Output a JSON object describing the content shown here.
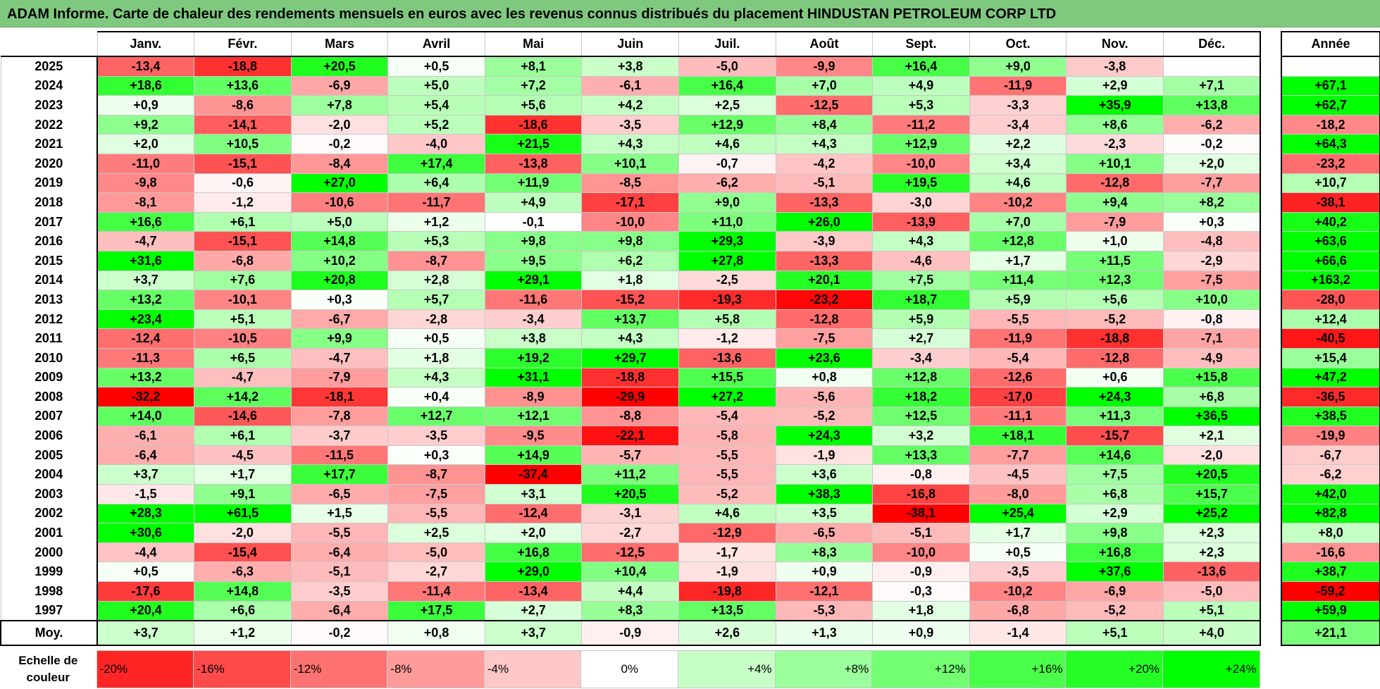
{
  "title": "ADAM Informe. Carte de chaleur des rendements mensuels en euros avec les revenus connus distribués du placement HINDUSTAN PETROLEUM CORP LTD",
  "chart_data": {
    "type": "heatmap",
    "title": "ADAM Informe. Carte de chaleur des rendements mensuels en euros avec les revenus connus distribués du placement HINDUSTAN PETROLEUM CORP LTD",
    "columns": [
      "Janv.",
      "Févr.",
      "Mars",
      "Avril",
      "Mai",
      "Juin",
      "Juil.",
      "Août",
      "Sept.",
      "Oct.",
      "Nov.",
      "Déc."
    ],
    "year_header": "Année",
    "rows": [
      {
        "label": "2025",
        "values": [
          "-13,4",
          "-18,8",
          "+20,5",
          "+0,5",
          "+8,1",
          "+3,8",
          "-5,0",
          "-9,9",
          "+16,4",
          "+9,0",
          "-3,8",
          ""
        ],
        "year": ""
      },
      {
        "label": "2024",
        "values": [
          "+18,6",
          "+13,6",
          "-6,9",
          "+5,0",
          "+7,2",
          "-6,1",
          "+16,4",
          "+7,0",
          "+4,9",
          "-11,9",
          "+2,9",
          "+7,1"
        ],
        "year": "+67,1"
      },
      {
        "label": "2023",
        "values": [
          "+0,9",
          "-8,6",
          "+7,8",
          "+5,4",
          "+5,6",
          "+4,2",
          "+2,5",
          "-12,5",
          "+5,3",
          "-3,3",
          "+35,9",
          "+13,8"
        ],
        "year": "+62,7"
      },
      {
        "label": "2022",
        "values": [
          "+9,2",
          "-14,1",
          "-2,0",
          "+5,2",
          "-18,6",
          "-3,5",
          "+12,9",
          "+8,4",
          "-11,2",
          "-3,4",
          "+8,6",
          "-6,2"
        ],
        "year": "-18,2"
      },
      {
        "label": "2021",
        "values": [
          "+2,0",
          "+10,5",
          "-0,2",
          "-4,0",
          "+21,5",
          "+4,3",
          "+4,6",
          "+4,3",
          "+12,9",
          "+2,2",
          "-2,3",
          "-0,2"
        ],
        "year": "+64,3"
      },
      {
        "label": "2020",
        "values": [
          "-11,0",
          "-15,1",
          "-8,4",
          "+17,4",
          "-13,8",
          "+10,1",
          "-0,7",
          "-4,2",
          "-10,0",
          "+3,4",
          "+10,1",
          "+2,0"
        ],
        "year": "-23,2"
      },
      {
        "label": "2019",
        "values": [
          "-9,8",
          "-0,6",
          "+27,0",
          "+6,4",
          "+11,9",
          "-8,5",
          "-6,2",
          "-5,1",
          "+19,5",
          "+4,6",
          "-12,8",
          "-7,7"
        ],
        "year": "+10,7"
      },
      {
        "label": "2018",
        "values": [
          "-8,1",
          "-1,2",
          "-10,6",
          "-11,7",
          "+4,9",
          "-17,1",
          "+9,0",
          "-13,3",
          "-3,0",
          "-10,2",
          "+9,4",
          "+8,2"
        ],
        "year": "-38,1"
      },
      {
        "label": "2017",
        "values": [
          "+16,6",
          "+6,1",
          "+5,0",
          "+1,2",
          "-0,1",
          "-10,0",
          "+11,0",
          "+26,0",
          "-13,9",
          "+7,0",
          "-7,9",
          "+0,3"
        ],
        "year": "+40,2"
      },
      {
        "label": "2016",
        "values": [
          "-4,7",
          "-15,1",
          "+14,8",
          "+5,3",
          "+9,8",
          "+9,8",
          "+29,3",
          "-3,9",
          "+4,3",
          "+12,8",
          "+1,0",
          "-4,8"
        ],
        "year": "+63,6"
      },
      {
        "label": "2015",
        "values": [
          "+31,6",
          "-6,8",
          "+10,2",
          "-8,7",
          "+9,5",
          "+6,2",
          "+27,8",
          "-13,3",
          "-4,6",
          "+1,7",
          "+11,5",
          "-2,9"
        ],
        "year": "+66,6"
      },
      {
        "label": "2014",
        "values": [
          "+3,7",
          "+7,6",
          "+20,8",
          "+2,8",
          "+29,1",
          "+1,8",
          "-2,5",
          "+20,1",
          "+7,5",
          "+11,4",
          "+12,3",
          "-7,5"
        ],
        "year": "+163,2"
      },
      {
        "label": "2013",
        "values": [
          "+13,2",
          "-10,1",
          "+0,3",
          "+5,7",
          "-11,6",
          "-15,2",
          "-19,3",
          "-23,2",
          "+18,7",
          "+5,9",
          "+5,6",
          "+10,0"
        ],
        "year": "-28,0"
      },
      {
        "label": "2012",
        "values": [
          "+23,4",
          "+5,1",
          "-6,7",
          "-2,8",
          "-3,4",
          "+13,7",
          "+5,8",
          "-12,8",
          "+5,9",
          "-5,5",
          "-5,2",
          "-0,8"
        ],
        "year": "+12,4"
      },
      {
        "label": "2011",
        "values": [
          "-12,4",
          "-10,5",
          "+9,9",
          "+0,5",
          "+3,8",
          "+4,3",
          "-1,2",
          "-7,5",
          "+2,7",
          "-11,9",
          "-18,8",
          "-7,1"
        ],
        "year": "-40,5"
      },
      {
        "label": "2010",
        "values": [
          "-11,3",
          "+6,5",
          "-4,7",
          "+1,8",
          "+19,2",
          "+29,7",
          "-13,6",
          "+23,6",
          "-3,4",
          "-5,4",
          "-12,8",
          "-4,9"
        ],
        "year": "+15,4"
      },
      {
        "label": "2009",
        "values": [
          "+13,2",
          "-4,7",
          "-7,9",
          "+4,3",
          "+31,1",
          "-18,8",
          "+15,5",
          "+0,8",
          "+12,8",
          "-12,6",
          "+0,6",
          "+15,8"
        ],
        "year": "+47,2"
      },
      {
        "label": "2008",
        "values": [
          "-32,2",
          "+14,2",
          "-18,1",
          "+0,4",
          "-8,9",
          "-29,9",
          "+27,2",
          "-5,6",
          "+18,2",
          "-17,0",
          "+24,3",
          "+6,8"
        ],
        "year": "-36,5"
      },
      {
        "label": "2007",
        "values": [
          "+14,0",
          "-14,6",
          "-7,8",
          "+12,7",
          "+12,1",
          "-8,8",
          "-5,4",
          "-5,2",
          "+12,5",
          "-11,1",
          "+11,3",
          "+36,5"
        ],
        "year": "+38,5"
      },
      {
        "label": "2006",
        "values": [
          "-6,1",
          "+6,1",
          "-3,7",
          "-3,5",
          "-9,5",
          "-22,1",
          "-5,8",
          "+24,3",
          "+3,2",
          "+18,1",
          "-15,7",
          "+2,1"
        ],
        "year": "-19,9"
      },
      {
        "label": "2005",
        "values": [
          "-6,4",
          "-4,5",
          "-11,5",
          "+0,3",
          "+14,9",
          "-5,7",
          "-5,5",
          "-1,9",
          "+13,3",
          "-7,7",
          "+14,6",
          "-2,0"
        ],
        "year": "-6,7"
      },
      {
        "label": "2004",
        "values": [
          "+3,7",
          "+1,7",
          "+17,7",
          "-8,7",
          "-37,4",
          "+11,2",
          "-5,5",
          "+3,6",
          "-0,8",
          "-4,5",
          "+7,5",
          "+20,5"
        ],
        "year": "-6,2"
      },
      {
        "label": "2003",
        "values": [
          "-1,5",
          "+9,1",
          "-6,5",
          "-7,5",
          "+3,1",
          "+20,5",
          "-5,2",
          "+38,3",
          "-16,8",
          "-8,0",
          "+6,8",
          "+15,7"
        ],
        "year": "+42,0"
      },
      {
        "label": "2002",
        "values": [
          "+28,3",
          "+61,5",
          "+1,5",
          "-5,5",
          "-12,4",
          "-3,1",
          "+4,6",
          "+3,5",
          "-38,1",
          "+25,4",
          "+2,9",
          "+25,2"
        ],
        "year": "+82,8"
      },
      {
        "label": "2001",
        "values": [
          "+30,6",
          "-2,0",
          "-5,5",
          "+2,5",
          "+2,0",
          "-2,7",
          "-12,9",
          "-6,5",
          "-5,1",
          "+1,7",
          "+9,8",
          "+2,3"
        ],
        "year": "+8,0"
      },
      {
        "label": "2000",
        "values": [
          "-4,4",
          "-15,4",
          "-6,4",
          "-5,0",
          "+16,8",
          "-12,5",
          "-1,7",
          "+8,3",
          "-10,0",
          "+0,5",
          "+16,8",
          "+2,3"
        ],
        "year": "-16,6"
      },
      {
        "label": "1999",
        "values": [
          "+0,5",
          "-6,3",
          "-5,1",
          "-2,7",
          "+29,0",
          "+10,4",
          "-1,9",
          "+0,9",
          "-0,9",
          "-3,5",
          "+37,6",
          "-13,6"
        ],
        "year": "+38,7"
      },
      {
        "label": "1998",
        "values": [
          "-17,6",
          "+14,8",
          "-3,5",
          "-11,4",
          "-13,4",
          "+4,4",
          "-19,8",
          "-12,1",
          "-0,3",
          "-10,2",
          "-6,9",
          "-5,0"
        ],
        "year": "-59,2"
      },
      {
        "label": "1997",
        "values": [
          "+20,4",
          "+6,6",
          "-6,4",
          "+17,5",
          "+2,7",
          "+8,3",
          "+13,5",
          "-5,3",
          "+1,8",
          "-6,8",
          "-5,2",
          "+5,1"
        ],
        "year": "+59,9"
      }
    ],
    "average": {
      "label": "Moy.",
      "values": [
        "+3,7",
        "+1,2",
        "-0,2",
        "+0,8",
        "+3,7",
        "-0,9",
        "+2,6",
        "+1,3",
        "+0,9",
        "-1,4",
        "+5,1",
        "+4,0"
      ],
      "year": "+21,1"
    },
    "scale": {
      "label": "Echelle de couleur",
      "stops": [
        "-20%",
        "-16%",
        "-12%",
        "-8%",
        "-4%",
        "0%",
        "+4%",
        "+8%",
        "+12%",
        "+16%",
        "+20%",
        "+24%"
      ],
      "stop_values": [
        -20,
        -16,
        -12,
        -8,
        -4,
        0,
        4,
        8,
        12,
        16,
        20,
        24
      ]
    },
    "colors": {
      "negative_max": "#ff0000",
      "neutral": "#ffffff",
      "positive_max": "#00ff00"
    }
  }
}
